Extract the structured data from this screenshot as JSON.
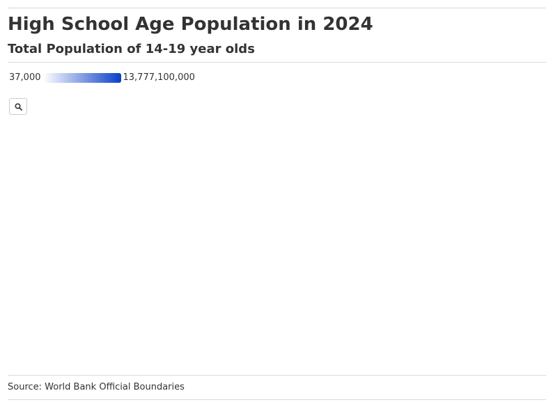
{
  "header": {
    "title": "High School Age Population in 2024",
    "subtitle": "Total Population of 14-19 year olds"
  },
  "legend": {
    "min_label": "37,000",
    "max_label": "13,777,100,000",
    "color_low": "#ffffff",
    "color_high": "#0a3fc7"
  },
  "map": {
    "zoom_icon": "search-icon"
  },
  "footer": {
    "source": "Source: World Bank Official Boundaries"
  }
}
